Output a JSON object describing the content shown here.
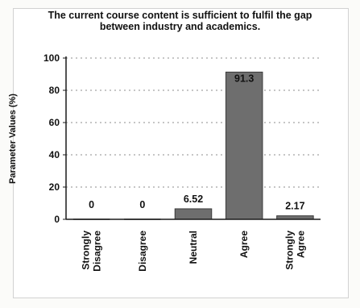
{
  "chart_data": {
    "type": "bar",
    "title_lines": [
      "The current course content is sufficient to fulfil the gap",
      "between industry and academics."
    ],
    "xlabel": "",
    "ylabel": "Parameter Values (%)",
    "categories": [
      [
        "Strongly",
        "Disagree"
      ],
      [
        "Disagree"
      ],
      [
        "Neutral"
      ],
      [
        "Agree"
      ],
      [
        "Strongly",
        "Agree"
      ]
    ],
    "values": [
      0,
      0,
      6.52,
      91.3,
      2.17
    ],
    "data_labels": [
      "0",
      "0",
      "6.52",
      "91.3",
      "2.17"
    ],
    "ylim": [
      0,
      100
    ],
    "yticks": [
      0,
      20,
      40,
      60,
      80,
      100
    ],
    "grid": "dotted horizontal",
    "legend": "none",
    "colors": {
      "bar": "#6e6e6e",
      "bar_edge": "#3a3a3a",
      "axis": "#1a1a1a",
      "grid": "#8c8c8c"
    }
  }
}
